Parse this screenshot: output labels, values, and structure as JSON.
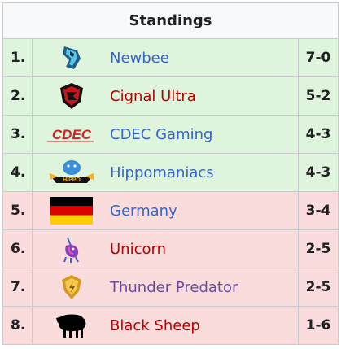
{
  "header": {
    "title": "Standings"
  },
  "rows": [
    {
      "rank": "1.",
      "team": "Newbee",
      "record": "7-0",
      "status": "up",
      "link": "blue",
      "logo": "newbee-logo-icon"
    },
    {
      "rank": "2.",
      "team": "Cignal Ultra",
      "record": "5-2",
      "status": "up",
      "link": "red",
      "logo": "cignal-ultra-logo-icon"
    },
    {
      "rank": "3.",
      "team": "CDEC Gaming",
      "record": "4-3",
      "status": "up",
      "link": "blue",
      "logo": "cdec-logo-icon"
    },
    {
      "rank": "4.",
      "team": "Hippomaniacs",
      "record": "4-3",
      "status": "up",
      "link": "blue",
      "logo": "hippomaniacs-logo-icon"
    },
    {
      "rank": "5.",
      "team": "Germany",
      "record": "3-4",
      "status": "down",
      "link": "blue",
      "logo": "germany-flag-icon"
    },
    {
      "rank": "6.",
      "team": "Unicorn",
      "record": "2-5",
      "status": "down",
      "link": "red",
      "logo": "unicorn-logo-icon"
    },
    {
      "rank": "7.",
      "team": "Thunder Predator",
      "record": "2-5",
      "status": "down",
      "link": "purple",
      "logo": "thunder-predator-logo-icon"
    },
    {
      "rank": "8.",
      "team": "Black Sheep",
      "record": "1-6",
      "status": "down",
      "link": "red",
      "logo": "black-sheep-logo-icon"
    }
  ],
  "colors": {
    "advance_bg": "#dff4dc",
    "eliminated_bg": "#fbdcdc",
    "link_blue": "#3366cc",
    "link_red": "#ba0000",
    "link_purple": "#6b4ba1"
  }
}
